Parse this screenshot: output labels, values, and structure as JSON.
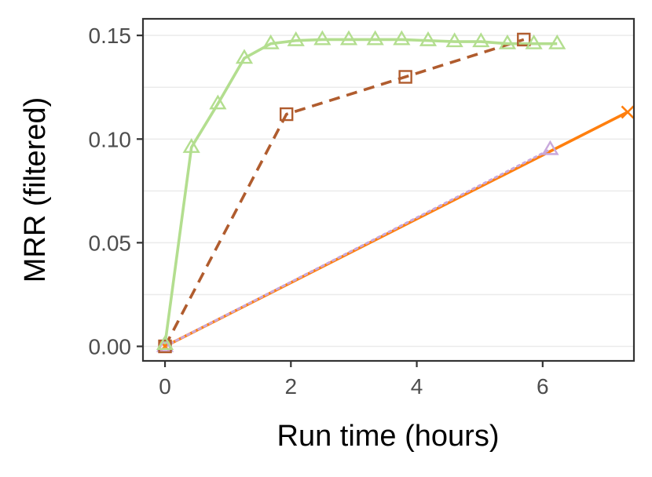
{
  "chart_data": {
    "type": "line",
    "title": "",
    "xlabel": "Run time (hours)",
    "ylabel": "MRR (filtered)",
    "xlim": [
      -0.35,
      7.45
    ],
    "ylim": [
      -0.007,
      0.158
    ],
    "xticks": [
      0,
      2,
      4,
      6
    ],
    "xtick_labels": [
      "0",
      "2",
      "4",
      "6"
    ],
    "yticks": [
      0.0,
      0.05,
      0.1,
      0.15
    ],
    "ytick_labels": [
      "0.00",
      "0.05",
      "0.10",
      "0.15"
    ],
    "grid": true,
    "legend": "none",
    "series": [
      {
        "color": "#b3de8f",
        "line_style": "solid",
        "marker": "triangle",
        "points": [
          [
            0.0,
            0.001
          ],
          [
            0.42,
            0.096
          ],
          [
            0.84,
            0.117
          ],
          [
            1.26,
            0.139
          ],
          [
            1.68,
            0.146
          ],
          [
            2.08,
            0.1475
          ],
          [
            2.5,
            0.148
          ],
          [
            2.92,
            0.148
          ],
          [
            3.34,
            0.148
          ],
          [
            3.76,
            0.148
          ],
          [
            4.18,
            0.1475
          ],
          [
            4.6,
            0.147
          ],
          [
            5.02,
            0.147
          ],
          [
            5.44,
            0.146
          ],
          [
            5.86,
            0.146
          ],
          [
            6.23,
            0.146
          ]
        ]
      },
      {
        "color": "#b05c2e",
        "line_style": "dashed",
        "marker": "square",
        "points": [
          [
            0.0,
            0.0
          ],
          [
            1.93,
            0.112
          ],
          [
            3.82,
            0.13
          ],
          [
            5.7,
            0.148
          ]
        ]
      },
      {
        "color": "#c8a8dc",
        "line_style": "dotted",
        "marker": "triangle",
        "points": [
          [
            0.0,
            0.0
          ],
          [
            6.12,
            0.095
          ]
        ]
      },
      {
        "color": "#ff7f0e",
        "line_style": "solid",
        "marker": "x",
        "points": [
          [
            0.0,
            0.0
          ],
          [
            7.35,
            0.113
          ]
        ]
      }
    ]
  }
}
